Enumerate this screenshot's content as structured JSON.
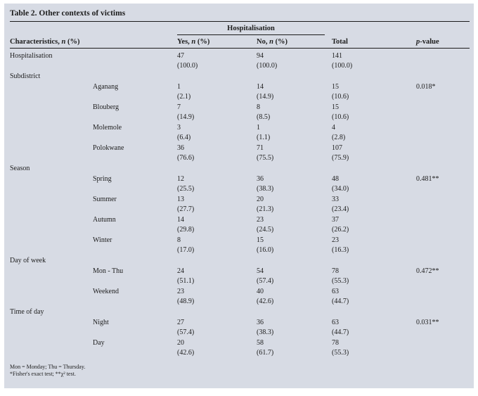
{
  "table": {
    "title": "Table 2. Other contexts of victims",
    "span_header": "Hospitalisation",
    "header": {
      "characteristics": [
        "Characteristics, ",
        "n",
        " (%)"
      ],
      "yes": [
        "Yes, ",
        "n",
        " (%)"
      ],
      "no": [
        "No, ",
        "n",
        " (%)"
      ],
      "total": "Total",
      "pvalue": [
        "p",
        "-value"
      ]
    },
    "sections": [
      {
        "label": "Hospitalisation",
        "inline": true,
        "rows": [
          {
            "sub": "",
            "yes_n": "47",
            "yes_pct": "(100.0)",
            "no_n": "94",
            "no_pct": "(100.0)",
            "total_n": "141",
            "total_pct": "(100.0)",
            "p": ""
          }
        ]
      },
      {
        "label": "Subdistrict",
        "inline": false,
        "rows": [
          {
            "sub": "Aganang",
            "yes_n": "1",
            "yes_pct": "(2.1)",
            "no_n": "14",
            "no_pct": "(14.9)",
            "total_n": "15",
            "total_pct": "(10.6)",
            "p": "0.018*"
          },
          {
            "sub": "Blouberg",
            "yes_n": "7",
            "yes_pct": "(14.9)",
            "no_n": "8",
            "no_pct": "(8.5)",
            "total_n": "15",
            "total_pct": "(10.6)",
            "p": ""
          },
          {
            "sub": "Molemole",
            "yes_n": "3",
            "yes_pct": "(6.4)",
            "no_n": "1",
            "no_pct": "(1.1)",
            "total_n": "4",
            "total_pct": "(2.8)",
            "p": ""
          },
          {
            "sub": "Polokwane",
            "yes_n": "36",
            "yes_pct": "(76.6)",
            "no_n": "71",
            "no_pct": "(75.5)",
            "total_n": "107",
            "total_pct": "(75.9)",
            "p": ""
          }
        ]
      },
      {
        "label": "Season",
        "inline": false,
        "rows": [
          {
            "sub": "Spring",
            "yes_n": "12",
            "yes_pct": "(25.5)",
            "no_n": "36",
            "no_pct": "(38.3)",
            "total_n": "48",
            "total_pct": "(34.0)",
            "p": "0.481**"
          },
          {
            "sub": "Summer",
            "yes_n": "13",
            "yes_pct": "(27.7)",
            "no_n": "20",
            "no_pct": "(21.3)",
            "total_n": "33",
            "total_pct": "(23.4)",
            "p": ""
          },
          {
            "sub": "Autumn",
            "yes_n": "14",
            "yes_pct": "(29.8)",
            "no_n": "23",
            "no_pct": "(24.5)",
            "total_n": "37",
            "total_pct": "(26.2)",
            "p": ""
          },
          {
            "sub": "Winter",
            "yes_n": "8",
            "yes_pct": "(17.0)",
            "no_n": "15",
            "no_pct": "(16.0)",
            "total_n": "23",
            "total_pct": "(16.3)",
            "p": ""
          }
        ]
      },
      {
        "label": "Day of week",
        "inline": false,
        "rows": [
          {
            "sub": "Mon - Thu",
            "yes_n": "24",
            "yes_pct": "(51.1)",
            "no_n": "54",
            "no_pct": "(57.4)",
            "total_n": "78",
            "total_pct": "(55.3)",
            "p": "0.472**"
          },
          {
            "sub": "Weekend",
            "yes_n": "23",
            "yes_pct": "(48.9)",
            "no_n": "40",
            "no_pct": "(42.6)",
            "total_n": "63",
            "total_pct": "(44.7)",
            "p": ""
          }
        ]
      },
      {
        "label": "Time of day",
        "inline": false,
        "rows": [
          {
            "sub": "Night",
            "yes_n": "27",
            "yes_pct": "(57.4)",
            "no_n": "36",
            "no_pct": "(38.3)",
            "total_n": "63",
            "total_pct": "(44.7)",
            "p": "0.031**"
          },
          {
            "sub": "Day",
            "yes_n": "20",
            "yes_pct": "(42.6)",
            "no_n": "58",
            "no_pct": "(61.7)",
            "total_n": "78",
            "total_pct": "(55.3)",
            "p": ""
          }
        ]
      }
    ],
    "footnotes": [
      "Mon = Monday; Thu = Thursday.",
      "*Fisher's exact test; **χ² test."
    ],
    "colors": {
      "background": "#d7dbe4",
      "text": "#1d1d1d",
      "rule": "#1b1b1b"
    }
  }
}
